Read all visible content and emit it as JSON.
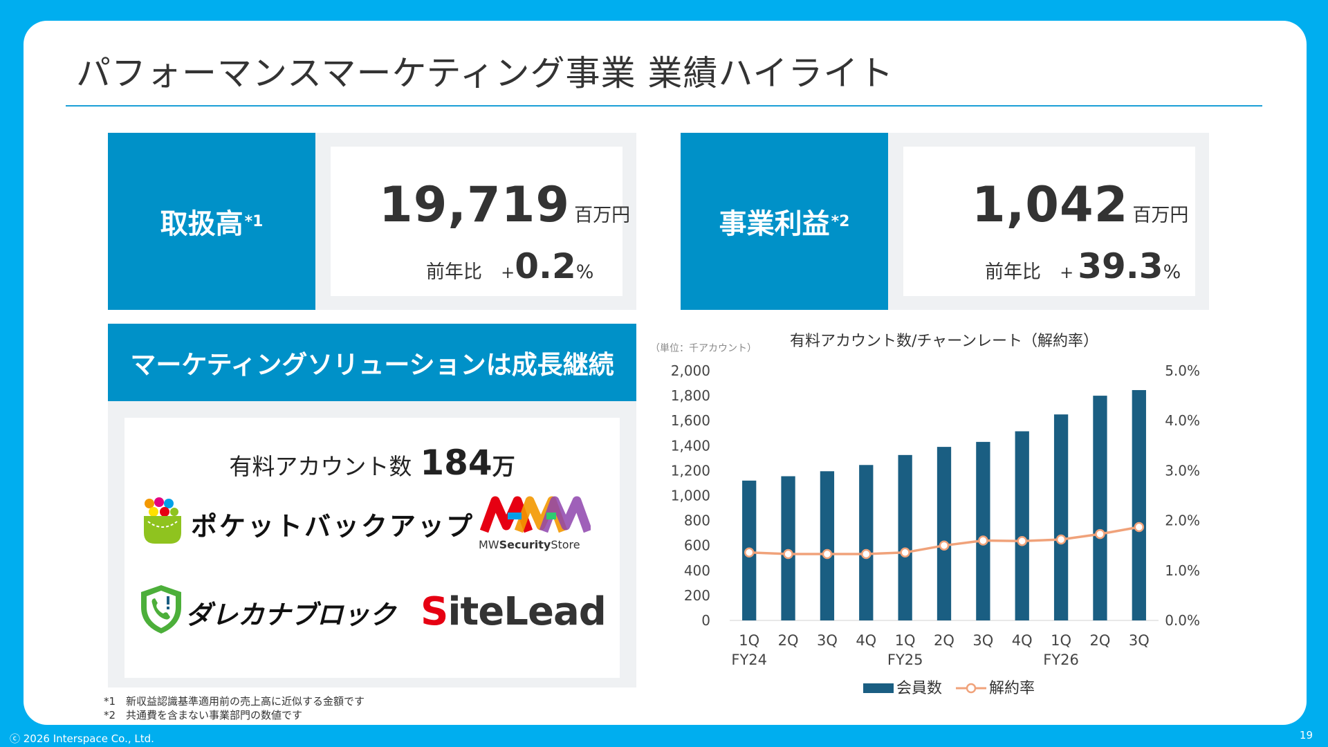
{
  "title": "パフォーマンスマーケティング事業 業績ハイライト",
  "kpis": [
    {
      "label": "取扱高",
      "note": "*1",
      "value": "19,719",
      "unit": "百万円",
      "yoy_label": "前年比",
      "yoy_sign": "+",
      "yoy_value": "0.2",
      "yoy_pct": "%"
    },
    {
      "label": "事業利益",
      "note": "*2",
      "value": "1,042",
      "unit": "百万円",
      "yoy_label": "前年比",
      "yoy_sign": "+",
      "yoy_value": "39.3",
      "yoy_pct": "%"
    }
  ],
  "marketing": {
    "header": "マーケティングソリューションは成長継続",
    "accounts_label": "有料アカウント数",
    "accounts_value": "184",
    "accounts_unit": "万",
    "logos": [
      {
        "name": "ポケットバックアップ",
        "icon": "pocket-backup-logo"
      },
      {
        "name": "MWSecurityStore",
        "prefix": "MW",
        "bold": "Security",
        "suffix": "Store",
        "icon": "mw-security-store-logo"
      },
      {
        "name": "ダレカナブロック",
        "icon": "darekana-block-logo"
      },
      {
        "name": "SiteLead",
        "first": "S",
        "rest": "iteLead",
        "icon": "sitelead-logo"
      }
    ]
  },
  "footnotes": [
    "*1　新収益認識基準適用前の売上高に近似する金額です",
    "*2　共通費を含まない事業部門の数値です"
  ],
  "copyright": "ⓒ 2026 Interspace Co., Ltd.",
  "page_number": "19",
  "colors": {
    "background": "#00aeef",
    "accent": "#0091c8",
    "bar": "#1a5e82",
    "line": "#f0a27a"
  },
  "chart_data": {
    "type": "bar+line",
    "title": "有料アカウント数/チャーンレート（解約率）",
    "unit_label": "（単位：千アカウント）",
    "categories": [
      "1Q",
      "2Q",
      "3Q",
      "4Q",
      "1Q",
      "2Q",
      "3Q",
      "4Q",
      "1Q",
      "2Q",
      "3Q"
    ],
    "fiscal_year_labels": [
      {
        "index": 0,
        "label": "FY24"
      },
      {
        "index": 4,
        "label": "FY25"
      },
      {
        "index": 8,
        "label": "FY26"
      }
    ],
    "y_left": {
      "min": 0,
      "max": 2000,
      "ticks": [
        "0",
        "200",
        "400",
        "600",
        "800",
        "1,000",
        "1,200",
        "1,400",
        "1,600",
        "1,800",
        "2,000"
      ]
    },
    "y_right": {
      "min": 0,
      "max": 5.0,
      "ticks": [
        "0.0%",
        "1.0%",
        "2.0%",
        "3.0%",
        "4.0%",
        "5.0%"
      ]
    },
    "series": [
      {
        "name": "会員数",
        "type": "bar",
        "axis": "left",
        "values": [
          1120,
          1155,
          1195,
          1245,
          1325,
          1390,
          1430,
          1515,
          1650,
          1800,
          1845
        ]
      },
      {
        "name": "解約率",
        "type": "line",
        "axis": "right",
        "values": [
          1.36,
          1.33,
          1.33,
          1.33,
          1.36,
          1.5,
          1.6,
          1.59,
          1.62,
          1.73,
          1.87
        ]
      }
    ],
    "legend": "bottom",
    "grid": false
  }
}
